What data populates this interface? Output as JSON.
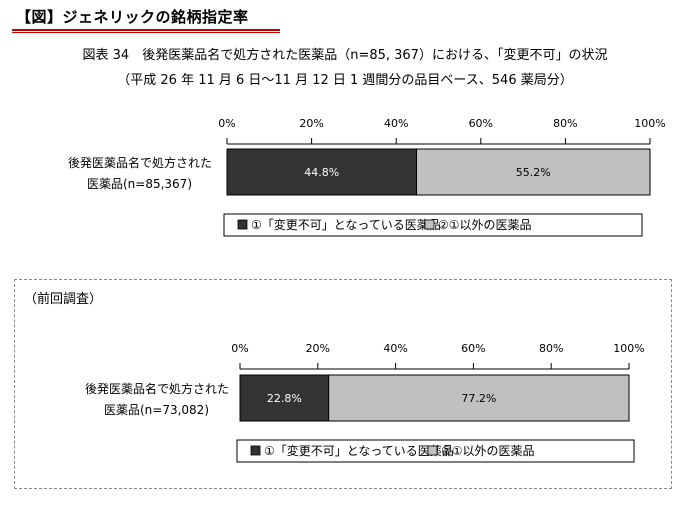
{
  "header": {
    "title": "【図】ジェネリックの銘柄指定率"
  },
  "caption": {
    "line1": "図表 34　後発医薬品名で処方された医薬品（n=85, 367）における、「変更不可」の状況",
    "line2": "（平成 26 年 11 月 6 日～11 月 12 日 1 週間分の品目ベース、546 薬局分）"
  },
  "previous_section_label": "（前回調査）",
  "colors": {
    "series1": "#333333",
    "series2": "#c0c0c0",
    "label_on_dark": "#ffffff",
    "label_on_light": "#000000"
  },
  "chart_data": [
    {
      "type": "bar",
      "orientation": "horizontal",
      "stacked": true,
      "xlim": [
        0,
        100
      ],
      "xticks": [
        "0%",
        "20%",
        "40%",
        "60%",
        "80%",
        "100%"
      ],
      "category_lines": [
        "後発医薬品名で処方された",
        "医薬品(n=85,367)"
      ],
      "series": [
        {
          "name": "①「変更不可」となっている医薬品",
          "values": [
            44.8
          ],
          "label": "44.8%"
        },
        {
          "name": "②①以外の医薬品",
          "values": [
            55.2
          ],
          "label": "55.2%"
        }
      ]
    },
    {
      "type": "bar",
      "orientation": "horizontal",
      "stacked": true,
      "xlim": [
        0,
        100
      ],
      "xticks": [
        "0%",
        "20%",
        "40%",
        "60%",
        "80%",
        "100%"
      ],
      "category_lines": [
        "後発医薬品名で処方された",
        "医薬品(n=73,082)"
      ],
      "series": [
        {
          "name": "①「変更不可」となっている医薬品",
          "values": [
            22.8
          ],
          "label": "22.8%"
        },
        {
          "name": "②①以外の医薬品",
          "values": [
            77.2
          ],
          "label": "77.2%"
        }
      ]
    }
  ]
}
